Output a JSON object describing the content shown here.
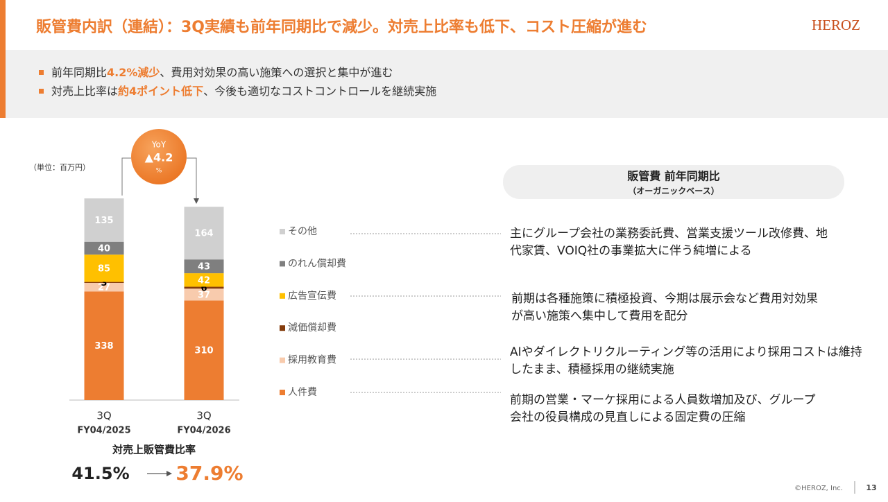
{
  "header": {
    "title": "販管費内訳（連結）：3Q実績も前年同期比で減少。対売上比率も低下、コスト圧縮が進む",
    "logo": "HEROZ"
  },
  "bullets": [
    [
      "前年同期比",
      "4.2%減少",
      "、費用対効果の高い施策への選択と集中が進む"
    ],
    [
      "対売上比率は",
      "約4ポイント低下",
      "、今後も適切なコストコントロールを継続実施"
    ]
  ],
  "chart_data": {
    "type": "stacked_bar",
    "unit_label": "（単位：百万円）",
    "categories": [
      "3Q",
      "3Q"
    ],
    "category_sublabels": [
      "FY04/2025",
      "FY04/2026"
    ],
    "ylim": [
      0,
      650
    ],
    "series": [
      {
        "name": "人件費",
        "color": "#ed7d31",
        "label_color": "#ffffff",
        "values": [
          338,
          310
        ]
      },
      {
        "name": "採用教育費",
        "color": "#f8cbad",
        "label_color": "#ffffff",
        "values": [
          27,
          37
        ]
      },
      {
        "name": "減価償却費",
        "color": "#843c0c",
        "label_color": "#000000",
        "values": [
          3,
          6
        ]
      },
      {
        "name": "広告宣伝費",
        "color": "#ffc000",
        "label_color": "#ffffff",
        "values": [
          85,
          42
        ]
      },
      {
        "name": "のれん償却費",
        "color": "#7f7f7f",
        "label_color": "#ffffff",
        "values": [
          40,
          43
        ]
      },
      {
        "name": "その他",
        "color": "#d0d0d0",
        "label_color": "#ffffff",
        "values": [
          135,
          164
        ]
      }
    ],
    "yoy": {
      "label": "YoY",
      "value_label": "▲4.2",
      "unit": "%"
    }
  },
  "ratio": {
    "title": "対売上販管費比率",
    "before": "41.5%",
    "after": "37.9%"
  },
  "panel": {
    "title": "販管費 前年同期比",
    "subtitle": "（オーガニックベース）"
  },
  "notes": [
    [
      "主にグループ会社の業務委託費、営業支援ツール改修費、地",
      "代家賃、VOIQ社の事業拡大に伴う純増による"
    ],
    [
      "前期は各種施策に積極投資、今期は展示会など費用対効果",
      "が高い施策へ集中して費用を配分"
    ],
    [
      "AIやダイレクトリクルーティング等の活用により採用コストは維持",
      "したまま、積極採用の継続実施"
    ],
    [
      "前期の営業・マーケ採用による人員数増加及び、グループ",
      "会社の役員構成の見直しによる固定費の圧縮"
    ]
  ],
  "footer": {
    "copyright": "©HEROZ, Inc.",
    "page": "13"
  }
}
